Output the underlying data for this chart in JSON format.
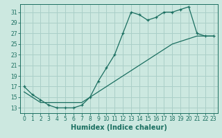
{
  "title": "",
  "xlabel": "Humidex (Indice chaleur)",
  "bg_color": "#cce8e0",
  "grid_color": "#aacfc8",
  "line_color": "#1a6e60",
  "xlim": [
    -0.5,
    23.5
  ],
  "ylim": [
    12,
    32.5
  ],
  "xticks": [
    0,
    1,
    2,
    3,
    4,
    5,
    6,
    7,
    8,
    9,
    10,
    11,
    12,
    13,
    14,
    15,
    16,
    17,
    18,
    19,
    20,
    21,
    22,
    23
  ],
  "yticks": [
    13,
    15,
    17,
    19,
    21,
    23,
    25,
    27,
    29,
    31
  ],
  "line1_x": [
    0,
    1,
    2,
    3,
    4,
    5,
    6,
    7,
    8,
    9,
    10,
    11,
    12,
    13,
    14,
    15,
    16,
    17,
    18,
    19,
    20,
    21,
    22,
    23
  ],
  "line1_y": [
    17,
    15.5,
    14.5,
    13.5,
    13,
    13,
    13,
    13.5,
    15,
    18,
    20.5,
    23,
    27,
    31,
    30.5,
    29.5,
    30,
    31,
    31,
    31.5,
    32,
    27,
    26.5,
    26.5
  ],
  "line2_x": [
    0,
    1,
    2,
    3,
    4,
    5,
    6,
    7,
    8,
    9,
    10,
    11,
    12,
    13,
    14,
    15,
    16,
    17,
    18,
    19,
    20,
    21,
    22,
    23
  ],
  "line2_y": [
    16,
    15,
    14,
    14,
    14,
    14,
    14,
    14,
    15,
    16,
    17,
    18,
    19,
    20,
    21,
    22,
    23,
    24,
    25,
    25.5,
    26,
    26.5,
    26.5,
    26.5
  ],
  "tick_fontsize": 5.5,
  "xlabel_fontsize": 7.0,
  "linewidth": 0.9,
  "markersize": 3.5,
  "markeredgewidth": 0.9
}
